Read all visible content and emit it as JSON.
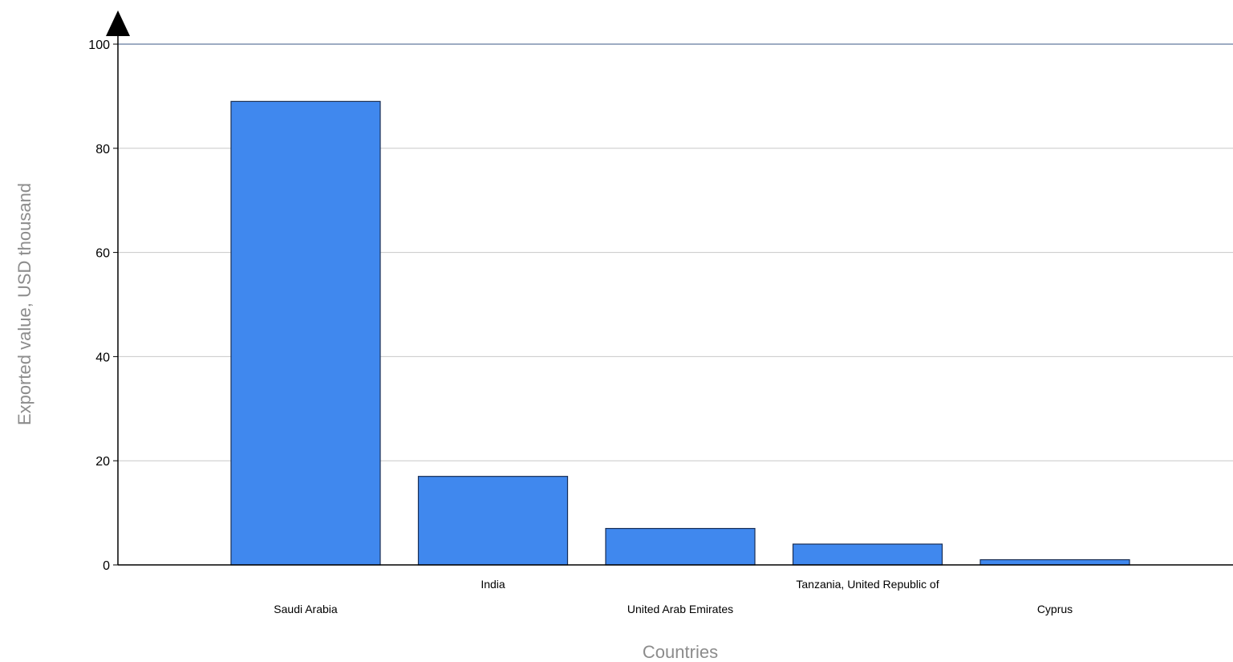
{
  "chart_data": {
    "type": "bar",
    "categories": [
      "Saudi Arabia",
      "India",
      "United Arab Emirates",
      "Tanzania, United Republic of",
      "Cyprus"
    ],
    "values": [
      89,
      17,
      7,
      4,
      1
    ],
    "title": "",
    "xlabel": "Countries",
    "ylabel": "Exported value, USD thousand",
    "ylim": [
      0,
      100
    ],
    "yticks": [
      0,
      20,
      40,
      60,
      80,
      100
    ],
    "grid": true,
    "legend": "none",
    "colors": {
      "bar_fill": "#4088EE",
      "bar_stroke": "#1a2f55",
      "grid": "#c8c8c8",
      "top_line": "#3b5a85",
      "axis": "#000000",
      "axis_title": "#8c8c8c"
    }
  }
}
